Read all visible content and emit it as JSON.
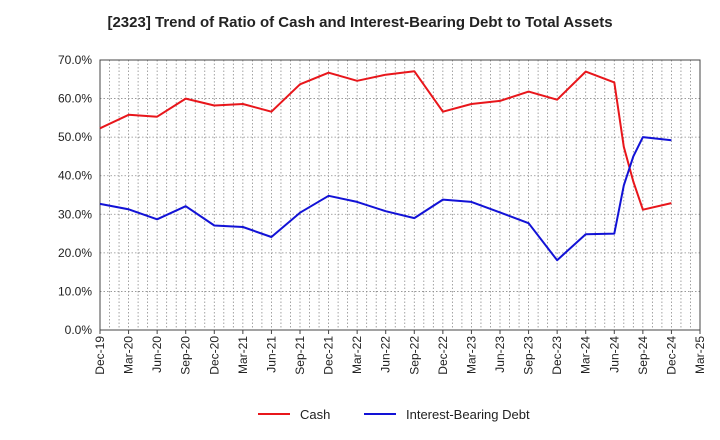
{
  "chart_data": {
    "type": "line",
    "title": "[2323]  Trend of Ratio of Cash and Interest-Bearing Debt to Total Assets",
    "x_ticks": [
      "Dec-19",
      "Mar-20",
      "Jun-20",
      "Sep-20",
      "Dec-20",
      "Mar-21",
      "Jun-21",
      "Sep-21",
      "Dec-21",
      "Mar-22",
      "Jun-22",
      "Sep-22",
      "Dec-22",
      "Mar-23",
      "Jun-23",
      "Sep-23",
      "Dec-23",
      "Mar-24",
      "Jun-24",
      "Sep-24",
      "Dec-24",
      "Mar-25"
    ],
    "y_ticks": [
      "0.0%",
      "10.0%",
      "20.0%",
      "30.0%",
      "40.0%",
      "50.0%",
      "60.0%",
      "70.0%"
    ],
    "ylim": [
      0,
      70
    ],
    "grid": true,
    "legend_position": "bottom",
    "series": [
      {
        "name": "Cash",
        "color": "#e8161b",
        "points": [
          {
            "x": "Dec-19",
            "y": 52.3
          },
          {
            "x": "Mar-20",
            "y": 55.8
          },
          {
            "x": "Jun-20",
            "y": 55.3
          },
          {
            "x": "Sep-20",
            "y": 60.0
          },
          {
            "x": "Dec-20",
            "y": 58.2
          },
          {
            "x": "Mar-21",
            "y": 58.6
          },
          {
            "x": "Jun-21",
            "y": 56.6
          },
          {
            "x": "Sep-21",
            "y": 63.7
          },
          {
            "x": "Dec-21",
            "y": 66.7
          },
          {
            "x": "Mar-22",
            "y": 64.6
          },
          {
            "x": "Jun-22",
            "y": 66.2
          },
          {
            "x": "Sep-22",
            "y": 67.1
          },
          {
            "x": "Dec-22",
            "y": 56.6
          },
          {
            "x": "Mar-23",
            "y": 58.6
          },
          {
            "x": "Jun-23",
            "y": 59.4
          },
          {
            "x": "Sep-23",
            "y": 61.8
          },
          {
            "x": "Dec-23",
            "y": 59.7
          },
          {
            "x": "Mar-24",
            "y": 67.0
          },
          {
            "x": "Jun-24",
            "y": 64.2
          },
          {
            "x": "Jul-24",
            "y": 47.5
          },
          {
            "x": "Aug-24",
            "y": 38.5
          },
          {
            "x": "Sep-24",
            "y": 31.2
          },
          {
            "x": "Dec-24",
            "y": 32.9
          }
        ]
      },
      {
        "name": "Interest-Bearing Debt",
        "color": "#1212d6",
        "points": [
          {
            "x": "Dec-19",
            "y": 32.7
          },
          {
            "x": "Mar-20",
            "y": 31.3
          },
          {
            "x": "Jun-20",
            "y": 28.7
          },
          {
            "x": "Sep-20",
            "y": 32.1
          },
          {
            "x": "Dec-20",
            "y": 27.1
          },
          {
            "x": "Mar-21",
            "y": 26.7
          },
          {
            "x": "Jun-21",
            "y": 24.1
          },
          {
            "x": "Sep-21",
            "y": 30.4
          },
          {
            "x": "Dec-21",
            "y": 34.8
          },
          {
            "x": "Mar-22",
            "y": 33.2
          },
          {
            "x": "Jun-22",
            "y": 30.8
          },
          {
            "x": "Sep-22",
            "y": 29.0
          },
          {
            "x": "Dec-22",
            "y": 33.8
          },
          {
            "x": "Mar-23",
            "y": 33.2
          },
          {
            "x": "Jun-23",
            "y": 30.5
          },
          {
            "x": "Sep-23",
            "y": 27.7
          },
          {
            "x": "Dec-23",
            "y": 18.1
          },
          {
            "x": "Mar-24",
            "y": 24.8
          },
          {
            "x": "Jun-24",
            "y": 25.0
          },
          {
            "x": "Jul-24",
            "y": 37.5
          },
          {
            "x": "Aug-24",
            "y": 45.0
          },
          {
            "x": "Sep-24",
            "y": 50.0
          },
          {
            "x": "Dec-24",
            "y": 49.2
          }
        ]
      }
    ]
  }
}
